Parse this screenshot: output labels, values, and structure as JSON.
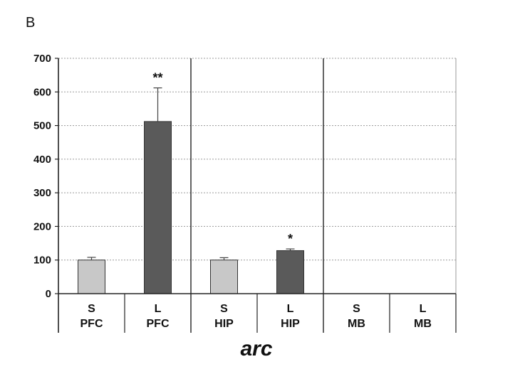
{
  "panel_label": "B",
  "chart_data": {
    "type": "bar",
    "xlabel": "arc",
    "ylabel": "",
    "ylim": [
      0,
      700
    ],
    "yticks": [
      0,
      100,
      200,
      300,
      400,
      500,
      600,
      700
    ],
    "grid": true,
    "groups": [
      "PFC",
      "HIP",
      "MB"
    ],
    "categories": [
      {
        "line1": "S",
        "line2": "PFC"
      },
      {
        "line1": "L",
        "line2": "PFC"
      },
      {
        "line1": "S",
        "line2": "HIP"
      },
      {
        "line1": "L",
        "line2": "HIP"
      },
      {
        "line1": "S",
        "line2": "MB"
      },
      {
        "line1": "L",
        "line2": "MB"
      }
    ],
    "values": [
      100,
      512,
      100,
      128,
      null,
      null
    ],
    "errors": [
      8,
      100,
      7,
      5,
      null,
      null
    ],
    "annotations": [
      "",
      "**",
      "",
      "*",
      "",
      ""
    ],
    "colors": {
      "S": "#c8c8c8",
      "L": "#5a5a5a"
    }
  }
}
